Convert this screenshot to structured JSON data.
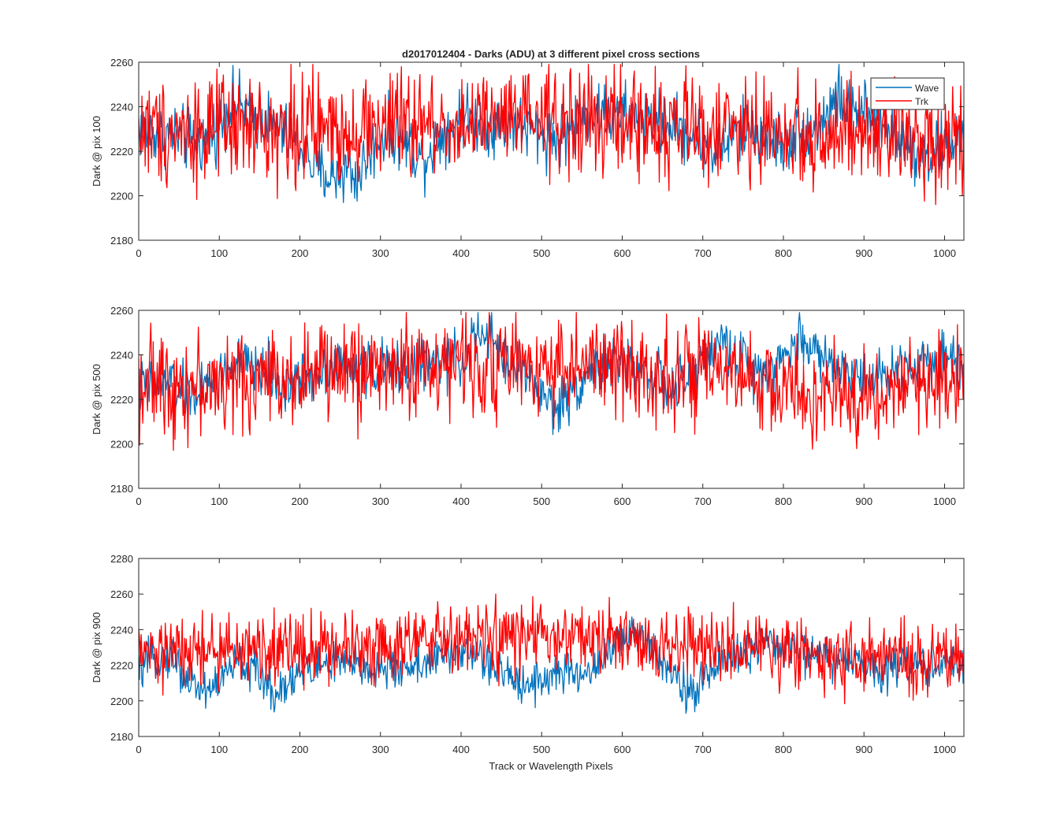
{
  "figure": {
    "title": "d2017012404 - Darks (ADU) at 3 different pixel cross sections",
    "xlabel": "Track or Wavelength Pixels"
  },
  "colors": {
    "wave": "#0072BD",
    "trk": "#FF0000",
    "axis": "#262626"
  },
  "chart_data": [
    {
      "type": "line",
      "title": "d2017012404 - Darks (ADU) at 3 different pixel cross sections",
      "xlabel": "",
      "ylabel": "Dark @ pix 100",
      "xlim": [
        0,
        1024
      ],
      "ylim": [
        2180,
        2260
      ],
      "xticks": [
        0,
        100,
        200,
        300,
        400,
        500,
        600,
        700,
        800,
        900,
        1000
      ],
      "yticks": [
        2180,
        2200,
        2220,
        2240,
        2260
      ],
      "legend": {
        "position": "top-right",
        "entries": [
          "Wave",
          "Trk"
        ]
      },
      "series": [
        {
          "name": "Wave",
          "color": "#0072BD",
          "x": [
            0,
            20,
            40,
            60,
            80,
            100,
            110,
            120,
            140,
            160,
            180,
            200,
            220,
            240,
            260,
            270,
            280,
            300,
            320,
            340,
            350,
            360,
            380,
            400,
            420,
            440,
            460,
            480,
            500,
            520,
            540,
            560,
            580,
            600,
            620,
            640,
            660,
            680,
            700,
            720,
            740,
            760,
            780,
            800,
            820,
            840,
            860,
            870,
            880,
            900,
            920,
            940,
            960,
            980,
            1000,
            1024
          ],
          "mean": [
            2230,
            2228,
            2228,
            2225,
            2224,
            2232,
            2240,
            2242,
            2236,
            2234,
            2228,
            2222,
            2212,
            2208,
            2212,
            2207,
            2215,
            2226,
            2228,
            2222,
            2216,
            2220,
            2230,
            2236,
            2234,
            2232,
            2233,
            2230,
            2228,
            2226,
            2232,
            2238,
            2236,
            2236,
            2235,
            2233,
            2233,
            2228,
            2224,
            2220,
            2228,
            2230,
            2226,
            2223,
            2228,
            2230,
            2240,
            2245,
            2238,
            2236,
            2232,
            2228,
            2222,
            2218,
            2222,
            2230
          ],
          "noise": 7
        },
        {
          "name": "Trk",
          "color": "#FF0000",
          "x": [
            0,
            100,
            200,
            300,
            400,
            500,
            600,
            700,
            800,
            900,
            1000,
            1024
          ],
          "mean": [
            2230,
            2229,
            2230,
            2231,
            2232,
            2234,
            2232,
            2230,
            2228,
            2226,
            2226,
            2228
          ],
          "noise": 12
        }
      ]
    },
    {
      "type": "line",
      "title": "",
      "xlabel": "",
      "ylabel": "Dark @ pix 500",
      "xlim": [
        0,
        1024
      ],
      "ylim": [
        2180,
        2260
      ],
      "xticks": [
        0,
        100,
        200,
        300,
        400,
        500,
        600,
        700,
        800,
        900,
        1000
      ],
      "yticks": [
        2180,
        2200,
        2220,
        2240,
        2260
      ],
      "series": [
        {
          "name": "Wave",
          "color": "#0072BD",
          "x": [
            0,
            20,
            40,
            60,
            80,
            100,
            120,
            140,
            160,
            180,
            200,
            240,
            280,
            320,
            360,
            400,
            420,
            440,
            460,
            480,
            500,
            520,
            540,
            560,
            600,
            640,
            660,
            680,
            700,
            720,
            740,
            760,
            800,
            820,
            840,
            860,
            880,
            900,
            920,
            940,
            960,
            980,
            1000,
            1024
          ],
          "mean": [
            2225,
            2226,
            2228,
            2222,
            2224,
            2230,
            2236,
            2234,
            2232,
            2226,
            2228,
            2236,
            2234,
            2234,
            2236,
            2238,
            2248,
            2246,
            2236,
            2232,
            2222,
            2216,
            2224,
            2234,
            2236,
            2232,
            2222,
            2228,
            2238,
            2246,
            2240,
            2234,
            2238,
            2248,
            2242,
            2236,
            2232,
            2232,
            2230,
            2234,
            2236,
            2238,
            2240,
            2236
          ],
          "noise": 6
        },
        {
          "name": "Trk",
          "color": "#FF0000",
          "x": [
            0,
            100,
            200,
            300,
            400,
            500,
            600,
            700,
            760,
            800,
            860,
            900,
            960,
            1000,
            1024
          ],
          "mean": [
            2228,
            2226,
            2232,
            2234,
            2236,
            2236,
            2234,
            2230,
            2228,
            2224,
            2220,
            2222,
            2226,
            2230,
            2232
          ],
          "noise": 11
        }
      ]
    },
    {
      "type": "line",
      "title": "",
      "xlabel": "Track or Wavelength Pixels",
      "ylabel": "Dark @ pix 900",
      "xlim": [
        0,
        1024
      ],
      "ylim": [
        2180,
        2280
      ],
      "xticks": [
        0,
        100,
        200,
        300,
        400,
        500,
        600,
        700,
        800,
        900,
        1000
      ],
      "yticks": [
        2180,
        2200,
        2220,
        2240,
        2260,
        2280
      ],
      "series": [
        {
          "name": "Wave",
          "color": "#0072BD",
          "x": [
            0,
            20,
            40,
            60,
            80,
            100,
            120,
            140,
            160,
            170,
            180,
            200,
            240,
            280,
            320,
            360,
            400,
            420,
            440,
            460,
            480,
            500,
            520,
            540,
            560,
            580,
            600,
            620,
            640,
            660,
            680,
            690,
            700,
            720,
            760,
            800,
            840,
            880,
            900,
            920,
            940,
            960,
            980,
            1000,
            1024
          ],
          "mean": [
            2218,
            2224,
            2226,
            2212,
            2206,
            2210,
            2222,
            2218,
            2210,
            2203,
            2210,
            2216,
            2222,
            2218,
            2218,
            2222,
            2228,
            2226,
            2218,
            2214,
            2210,
            2212,
            2216,
            2214,
            2216,
            2228,
            2234,
            2236,
            2230,
            2218,
            2208,
            2200,
            2212,
            2222,
            2228,
            2232,
            2226,
            2222,
            2220,
            2218,
            2222,
            2220,
            2220,
            2220,
            2222
          ],
          "noise": 6
        },
        {
          "name": "Trk",
          "color": "#FF0000",
          "x": [
            0,
            100,
            200,
            300,
            400,
            500,
            600,
            700,
            800,
            900,
            1000,
            1024
          ],
          "mean": [
            2226,
            2228,
            2230,
            2232,
            2234,
            2236,
            2233,
            2230,
            2228,
            2224,
            2222,
            2226
          ],
          "noise": 10
        }
      ]
    }
  ]
}
